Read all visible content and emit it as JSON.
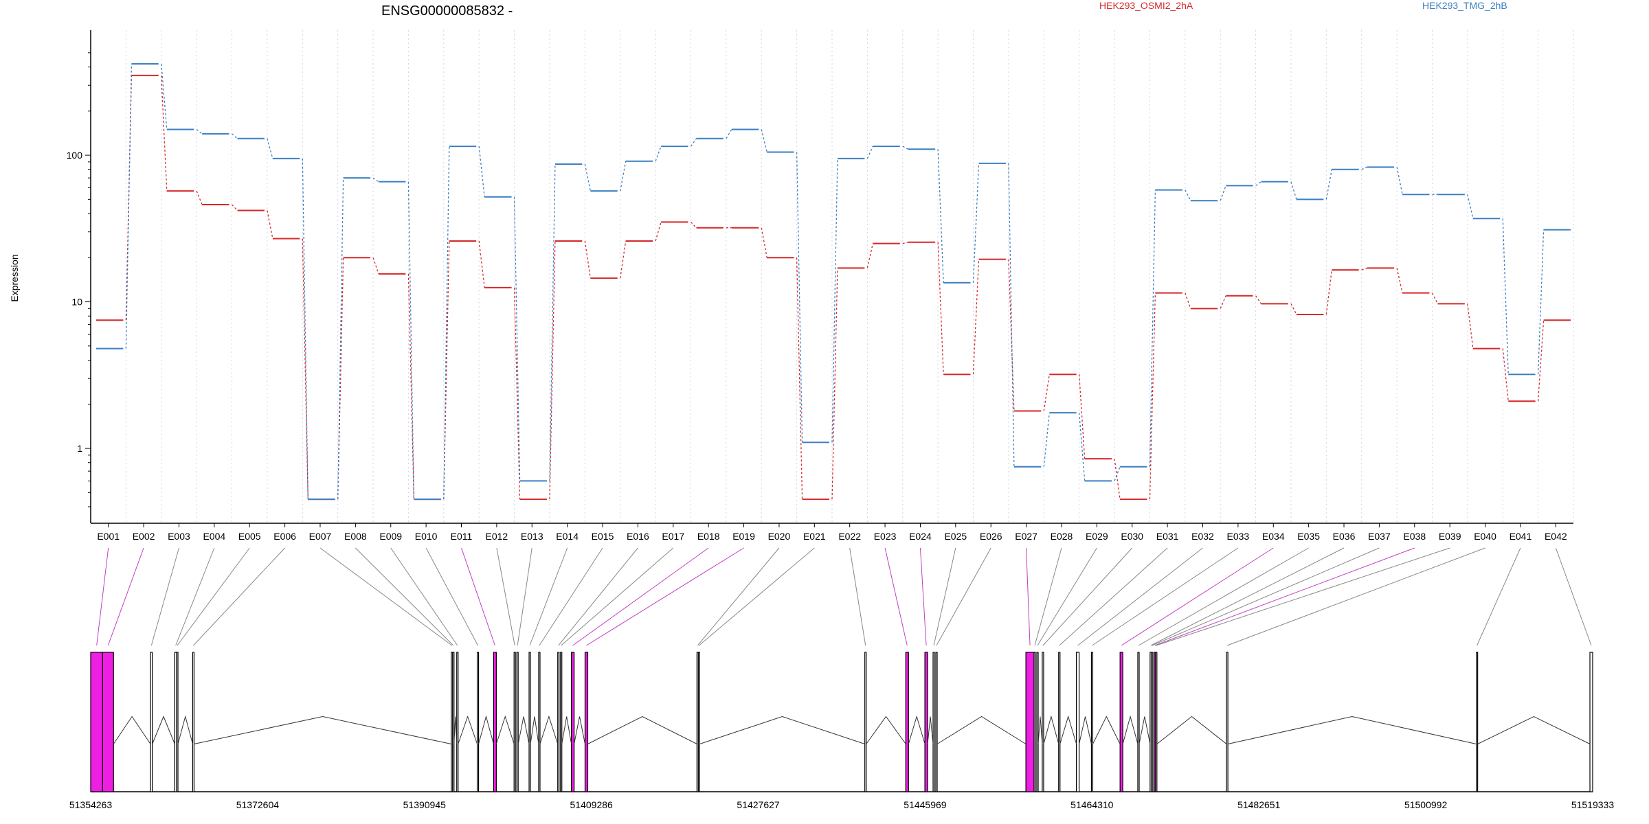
{
  "chart_data": {
    "type": "line",
    "title": "ENSG00000085832 -",
    "ylabel": "Expression",
    "xlabel": "",
    "yscale": "log",
    "ylim": [
      0.4,
      550
    ],
    "yticks": [
      {
        "value": 1,
        "label": "1"
      },
      {
        "value": 10,
        "label": "10"
      },
      {
        "value": 100,
        "label": "100"
      }
    ],
    "grid": "vertical dotted lines at exon boundaries",
    "legend_position": "top",
    "colors": {
      "series1": "#d62728",
      "series2": "#3a7fc0",
      "exon_highlight": "#ee1fe3",
      "exon_normal": "#000000",
      "link_highlight": "#c03fc0",
      "link_normal": "#888888"
    },
    "categories": [
      "E001",
      "E002",
      "E003",
      "E004",
      "E005",
      "E006",
      "E007",
      "E008",
      "E009",
      "E010",
      "E011",
      "E012",
      "E013",
      "E014",
      "E015",
      "E016",
      "E017",
      "E018",
      "E019",
      "E020",
      "E021",
      "E022",
      "E023",
      "E024",
      "E025",
      "E026",
      "E027",
      "E028",
      "E029",
      "E030",
      "E031",
      "E032",
      "E033",
      "E034",
      "E035",
      "E036",
      "E037",
      "E038",
      "E039",
      "E040",
      "E041",
      "E042"
    ],
    "series": [
      {
        "name": "HEK293_OSMI2_2hA",
        "color": "#d62728",
        "values": [
          7.5,
          350,
          57,
          46,
          42,
          27,
          0.45,
          20,
          15.5,
          0.45,
          26,
          12.5,
          0.45,
          26,
          14.5,
          26,
          35,
          32,
          32,
          20,
          0.45,
          17,
          25,
          25.5,
          3.2,
          19.5,
          1.8,
          3.2,
          0.85,
          0.45,
          11.5,
          9,
          11,
          9.7,
          8.2,
          16.5,
          17,
          11.5,
          9.7,
          4.8,
          2.1,
          7.5
        ]
      },
      {
        "name": "HEK293_TMG_2hB",
        "color": "#3a7fc0",
        "values": [
          4.8,
          420,
          150,
          140,
          130,
          95,
          0.45,
          70,
          66,
          0.45,
          115,
          52,
          0.6,
          87,
          57,
          91,
          115,
          130,
          150,
          105,
          1.1,
          95,
          115,
          110,
          13.5,
          88,
          0.75,
          1.75,
          0.6,
          0.75,
          58,
          49,
          62,
          66,
          50,
          80,
          83,
          54,
          54,
          37,
          3.2,
          31
        ]
      }
    ],
    "gene_model": {
      "coordinate_ticks": [
        "51354263",
        "51372604",
        "51390945",
        "51409286",
        "51427627",
        "51445969",
        "51464310",
        "51482651",
        "51500992",
        "51519333"
      ],
      "coordinate_range": [
        51354263,
        51519333
      ],
      "exons": [
        {
          "id": "E001",
          "start": 51354263,
          "end": 51355573,
          "highlight": true
        },
        {
          "id": "E002",
          "start": 51355573,
          "end": 51356773,
          "highlight": true
        },
        {
          "id": "E003",
          "start": 51360833,
          "end": 51361033,
          "highlight": false
        },
        {
          "id": "E004",
          "start": 51363503,
          "end": 51363703,
          "highlight": false
        },
        {
          "id": "E005",
          "start": 51363703,
          "end": 51363853,
          "highlight": false
        },
        {
          "id": "E006",
          "start": 51365473,
          "end": 51365623,
          "highlight": false
        },
        {
          "id": "E007",
          "start": 51393893,
          "end": 51394043,
          "highlight": false
        },
        {
          "id": "E008",
          "start": 51394043,
          "end": 51394193,
          "highlight": false
        },
        {
          "id": "E009",
          "start": 51394493,
          "end": 51394643,
          "highlight": false
        },
        {
          "id": "E010",
          "start": 51396743,
          "end": 51396893,
          "highlight": false
        },
        {
          "id": "E011",
          "start": 51398543,
          "end": 51398843,
          "highlight": true
        },
        {
          "id": "E012",
          "start": 51400793,
          "end": 51400943,
          "highlight": false
        },
        {
          "id": "E013",
          "start": 51401093,
          "end": 51401243,
          "highlight": false
        },
        {
          "id": "E014",
          "start": 51402443,
          "end": 51402593,
          "highlight": false
        },
        {
          "id": "E015",
          "start": 51403493,
          "end": 51403643,
          "highlight": false
        },
        {
          "id": "E016",
          "start": 51405593,
          "end": 51405743,
          "highlight": false
        },
        {
          "id": "E017",
          "start": 51405893,
          "end": 51406043,
          "highlight": false
        },
        {
          "id": "E018",
          "start": 51407093,
          "end": 51407393,
          "highlight": true
        },
        {
          "id": "E019",
          "start": 51408593,
          "end": 51408893,
          "highlight": true
        },
        {
          "id": "E020",
          "start": 51420893,
          "end": 51421043,
          "highlight": false
        },
        {
          "id": "E021",
          "start": 51421043,
          "end": 51421193,
          "highlight": false
        },
        {
          "id": "E022",
          "start": 51439343,
          "end": 51439493,
          "highlight": false
        },
        {
          "id": "E023",
          "start": 51443843,
          "end": 51444143,
          "highlight": true
        },
        {
          "id": "E024",
          "start": 51445943,
          "end": 51446243,
          "highlight": true
        },
        {
          "id": "E025",
          "start": 51446843,
          "end": 51446993,
          "highlight": false
        },
        {
          "id": "E026",
          "start": 51447143,
          "end": 51447293,
          "highlight": false
        },
        {
          "id": "E027",
          "start": 51457043,
          "end": 51457943,
          "highlight": true
        },
        {
          "id": "E028",
          "start": 51457943,
          "end": 51458093,
          "highlight": false
        },
        {
          "id": "E029",
          "start": 51458243,
          "end": 51458393,
          "highlight": false
        },
        {
          "id": "E030",
          "start": 51458843,
          "end": 51458993,
          "highlight": false
        },
        {
          "id": "E031",
          "start": 51460643,
          "end": 51460793,
          "highlight": false
        },
        {
          "id": "E032",
          "start": 51462593,
          "end": 51462893,
          "highlight": false
        },
        {
          "id": "E033",
          "start": 51464243,
          "end": 51464393,
          "highlight": false
        },
        {
          "id": "E034",
          "start": 51467393,
          "end": 51467693,
          "highlight": true
        },
        {
          "id": "E035",
          "start": 51469343,
          "end": 51469493,
          "highlight": false
        },
        {
          "id": "E036",
          "start": 51470693,
          "end": 51470843,
          "highlight": false
        },
        {
          "id": "E037",
          "start": 51470843,
          "end": 51470993,
          "highlight": false
        },
        {
          "id": "E038",
          "start": 51471143,
          "end": 51471293,
          "highlight": true
        },
        {
          "id": "E039",
          "start": 51471293,
          "end": 51471443,
          "highlight": false
        },
        {
          "id": "E040",
          "start": 51479093,
          "end": 51479243,
          "highlight": false
        },
        {
          "id": "E041",
          "start": 51506543,
          "end": 51506693,
          "highlight": false
        },
        {
          "id": "E042",
          "start": 51519033,
          "end": 51519333,
          "highlight": false
        }
      ]
    }
  }
}
